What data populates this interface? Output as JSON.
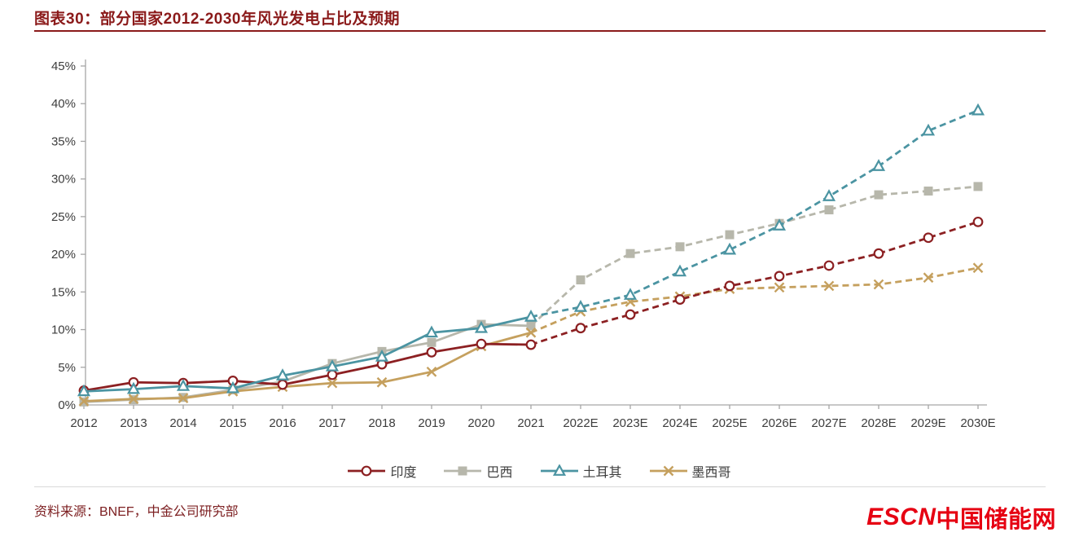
{
  "header": {
    "title": "图表30：部分国家2012-2030年风光发电占比及预期"
  },
  "footer": {
    "source": "资料来源：BNEF，中金公司研究部",
    "logo_latin": "ESCN",
    "logo_cn": "中国储能网",
    "logo_color": "#e60012"
  },
  "chart_data": {
    "type": "line",
    "title": "部分国家2012-2030年风光发电占比及预期",
    "categories": [
      "2012",
      "2013",
      "2014",
      "2015",
      "2016",
      "2017",
      "2018",
      "2019",
      "2020",
      "2021",
      "2022E",
      "2023E",
      "2024E",
      "2025E",
      "2026E",
      "2027E",
      "2028E",
      "2029E",
      "2030E"
    ],
    "y_tick_labels": [
      "0%",
      "5%",
      "10%",
      "15%",
      "20%",
      "25%",
      "30%",
      "35%",
      "40%",
      "45%"
    ],
    "ylim": [
      0,
      45
    ],
    "y_tick_step": 5,
    "grid": false,
    "legend_position": "bottom",
    "dashed_from_index": 9,
    "series": [
      {
        "name": "印度",
        "color": "#8c2022",
        "marker": "circle-open",
        "values": [
          1.9,
          3.0,
          2.9,
          3.2,
          2.7,
          4.0,
          5.4,
          7.0,
          8.1,
          8.0,
          10.2,
          12.0,
          14.0,
          15.8,
          17.1,
          18.5,
          20.1,
          22.2,
          24.3
        ]
      },
      {
        "name": "巴西",
        "color": "#b7b7ab",
        "marker": "square",
        "values": [
          0.4,
          0.7,
          1.0,
          2.0,
          3.1,
          5.5,
          7.1,
          8.3,
          10.7,
          10.5,
          16.6,
          20.1,
          21.0,
          22.6,
          24.1,
          25.9,
          27.9,
          28.4,
          29.0
        ]
      },
      {
        "name": "土耳其",
        "color": "#4b94a2",
        "marker": "triangle-open",
        "values": [
          1.8,
          2.1,
          2.5,
          2.2,
          3.9,
          5.1,
          6.4,
          9.6,
          10.2,
          11.7,
          13.0,
          14.6,
          17.7,
          20.6,
          23.8,
          27.7,
          31.7,
          36.4,
          39.1
        ]
      },
      {
        "name": "墨西哥",
        "color": "#c5a05e",
        "marker": "x",
        "values": [
          0.5,
          0.8,
          0.9,
          1.8,
          2.4,
          2.9,
          3.0,
          4.4,
          7.8,
          9.6,
          12.4,
          13.7,
          14.4,
          15.4,
          15.6,
          15.8,
          16.0,
          16.9,
          18.2
        ]
      }
    ]
  }
}
